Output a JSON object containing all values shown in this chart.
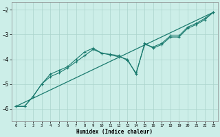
{
  "title": "",
  "xlabel": "Humidex (Indice chaleur)",
  "ylabel": "",
  "bg_color": "#cceee8",
  "line_color": "#1a7a6e",
  "grid_color": "#aad4cc",
  "xlim": [
    -0.5,
    23.5
  ],
  "ylim": [
    -6.5,
    -1.7
  ],
  "yticks": [
    -6,
    -5,
    -4,
    -3,
    -2
  ],
  "xticks": [
    0,
    1,
    2,
    3,
    4,
    5,
    6,
    7,
    8,
    9,
    10,
    11,
    12,
    13,
    14,
    15,
    16,
    17,
    18,
    19,
    20,
    21,
    22,
    23
  ],
  "line1_x": [
    0,
    1,
    2,
    3,
    4,
    5,
    6,
    7,
    8,
    9,
    10,
    11,
    12,
    13,
    14,
    15,
    16,
    17,
    18,
    19,
    20,
    21,
    22,
    23
  ],
  "line1_y": [
    -5.9,
    -5.9,
    -5.5,
    -5.0,
    -4.6,
    -4.45,
    -4.3,
    -4.0,
    -3.7,
    -3.55,
    -3.75,
    -3.8,
    -3.85,
    -4.05,
    -4.55,
    -3.4,
    -3.5,
    -3.35,
    -3.05,
    -3.05,
    -2.7,
    -2.55,
    -2.35,
    -2.1
  ],
  "line2_x": [
    0,
    1,
    2,
    3,
    4,
    5,
    6,
    7,
    8,
    9,
    10,
    11,
    12,
    13,
    14,
    15,
    16,
    17,
    18,
    19,
    20,
    21,
    22,
    23
  ],
  "line2_y": [
    -5.9,
    -5.9,
    -5.5,
    -5.0,
    -4.7,
    -4.55,
    -4.35,
    -4.1,
    -3.85,
    -3.6,
    -3.75,
    -3.82,
    -3.9,
    -4.0,
    -4.6,
    -3.35,
    -3.55,
    -3.4,
    -3.1,
    -3.1,
    -2.75,
    -2.6,
    -2.4,
    -2.1
  ],
  "line3_x": [
    0,
    23
  ],
  "line3_y": [
    -5.9,
    -2.1
  ]
}
